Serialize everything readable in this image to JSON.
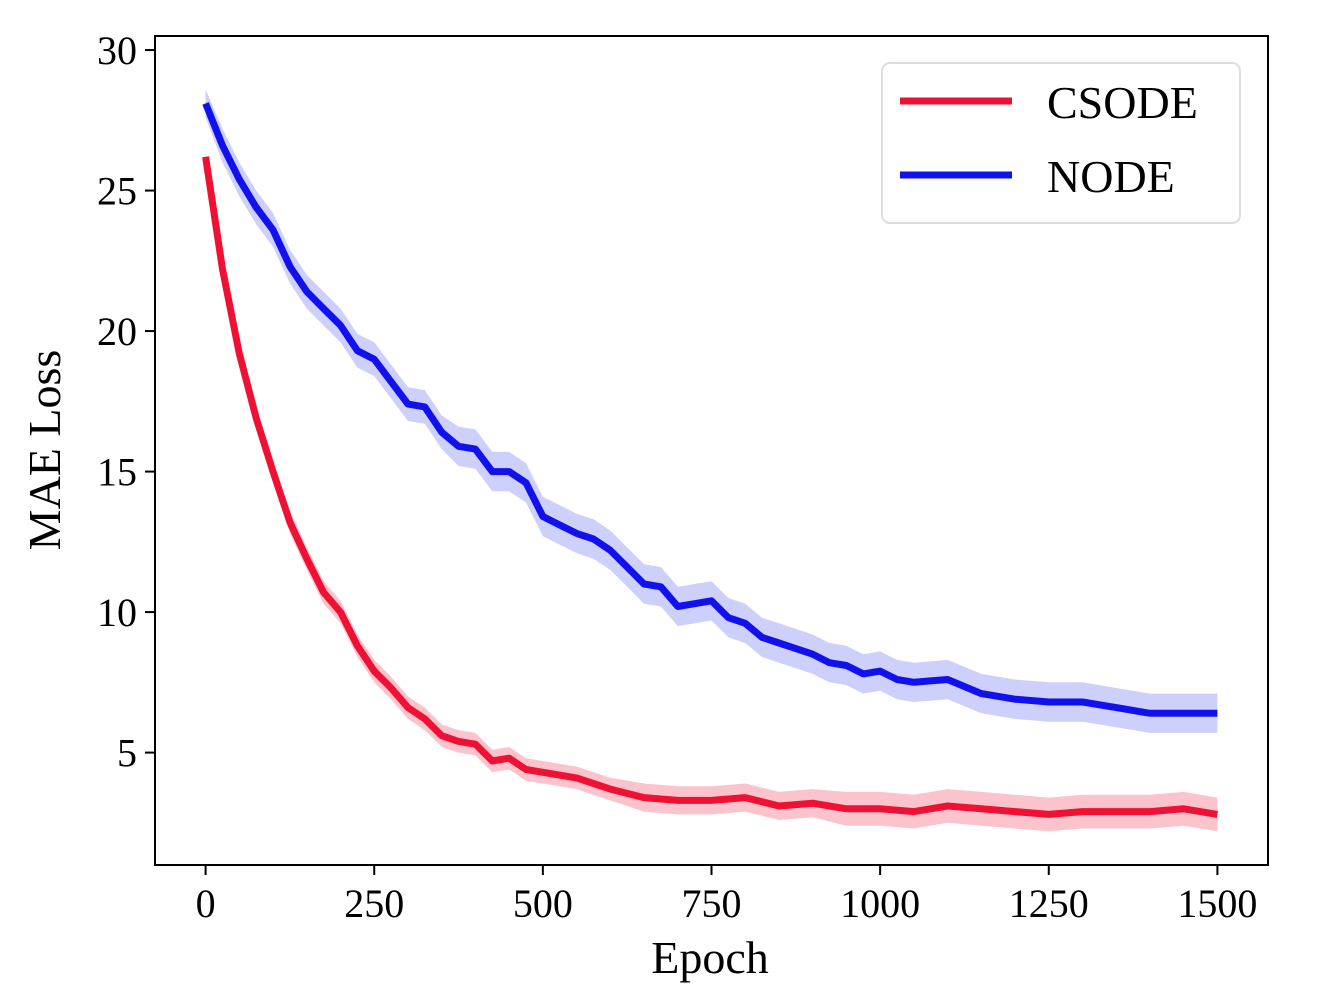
{
  "chart_data": {
    "type": "line",
    "xlabel": "Epoch",
    "ylabel": "MAE Loss",
    "xlim": [
      -75,
      1575
    ],
    "ylim": [
      1,
      30.5
    ],
    "xticks": [
      0,
      250,
      500,
      750,
      1000,
      1250,
      1500
    ],
    "xtick_labels": [
      "0",
      "250",
      "500",
      "750",
      "1000",
      "1250",
      "1500"
    ],
    "yticks": [
      5,
      10,
      15,
      20,
      25,
      30
    ],
    "ytick_labels": [
      "5",
      "10",
      "15",
      "20",
      "25",
      "30"
    ],
    "legend_position": "top-right",
    "series": [
      {
        "name": "CSODE",
        "color": "#ee1133",
        "band_color": "#ee1133",
        "x": [
          0,
          25,
          50,
          75,
          100,
          125,
          150,
          175,
          200,
          225,
          250,
          275,
          300,
          325,
          350,
          375,
          400,
          425,
          450,
          475,
          500,
          550,
          600,
          650,
          700,
          750,
          800,
          850,
          900,
          950,
          1000,
          1050,
          1100,
          1150,
          1200,
          1250,
          1300,
          1350,
          1400,
          1450,
          1500
        ],
        "values": [
          26.2,
          22.2,
          19.2,
          16.9,
          15.0,
          13.2,
          11.9,
          10.7,
          10.0,
          8.8,
          7.9,
          7.3,
          6.6,
          6.2,
          5.6,
          5.4,
          5.3,
          4.7,
          4.8,
          4.4,
          4.3,
          4.1,
          3.7,
          3.4,
          3.3,
          3.3,
          3.4,
          3.1,
          3.2,
          3.0,
          3.0,
          2.9,
          3.1,
          3.0,
          2.9,
          2.8,
          2.9,
          2.9,
          2.9,
          3.0,
          2.8
        ],
        "spread": [
          0.2,
          0.3,
          0.3,
          0.3,
          0.3,
          0.4,
          0.4,
          0.4,
          0.4,
          0.4,
          0.4,
          0.4,
          0.4,
          0.4,
          0.4,
          0.4,
          0.4,
          0.4,
          0.4,
          0.4,
          0.4,
          0.4,
          0.4,
          0.5,
          0.5,
          0.5,
          0.5,
          0.5,
          0.5,
          0.6,
          0.6,
          0.6,
          0.6,
          0.6,
          0.6,
          0.6,
          0.6,
          0.6,
          0.6,
          0.6,
          0.6
        ]
      },
      {
        "name": "NODE",
        "color": "#1111ee",
        "band_color": "#3344ee",
        "x": [
          0,
          25,
          50,
          75,
          100,
          125,
          150,
          175,
          200,
          225,
          250,
          275,
          300,
          325,
          350,
          375,
          400,
          425,
          450,
          475,
          500,
          525,
          550,
          575,
          600,
          625,
          650,
          675,
          700,
          725,
          750,
          775,
          800,
          825,
          850,
          875,
          900,
          925,
          950,
          975,
          1000,
          1025,
          1050,
          1100,
          1150,
          1200,
          1250,
          1300,
          1350,
          1400,
          1450,
          1500
        ],
        "values": [
          28.1,
          26.6,
          25.4,
          24.4,
          23.6,
          22.3,
          21.4,
          20.8,
          20.2,
          19.3,
          19.0,
          18.2,
          17.4,
          17.3,
          16.4,
          15.9,
          15.8,
          15.0,
          15.0,
          14.6,
          13.4,
          13.1,
          12.8,
          12.6,
          12.2,
          11.6,
          11.0,
          10.9,
          10.2,
          10.3,
          10.4,
          9.8,
          9.6,
          9.1,
          8.9,
          8.7,
          8.5,
          8.2,
          8.1,
          7.8,
          7.9,
          7.6,
          7.5,
          7.6,
          7.1,
          6.9,
          6.8,
          6.8,
          6.6,
          6.4,
          6.4,
          6.4
        ],
        "spread": [
          0.5,
          0.6,
          0.6,
          0.6,
          0.6,
          0.6,
          0.6,
          0.6,
          0.6,
          0.6,
          0.6,
          0.6,
          0.6,
          0.6,
          0.6,
          0.7,
          0.7,
          0.7,
          0.7,
          0.7,
          0.7,
          0.7,
          0.7,
          0.7,
          0.7,
          0.7,
          0.7,
          0.7,
          0.7,
          0.7,
          0.7,
          0.7,
          0.7,
          0.7,
          0.7,
          0.7,
          0.7,
          0.7,
          0.7,
          0.7,
          0.7,
          0.7,
          0.7,
          0.7,
          0.7,
          0.7,
          0.7,
          0.7,
          0.7,
          0.7,
          0.7,
          0.7
        ]
      }
    ]
  }
}
